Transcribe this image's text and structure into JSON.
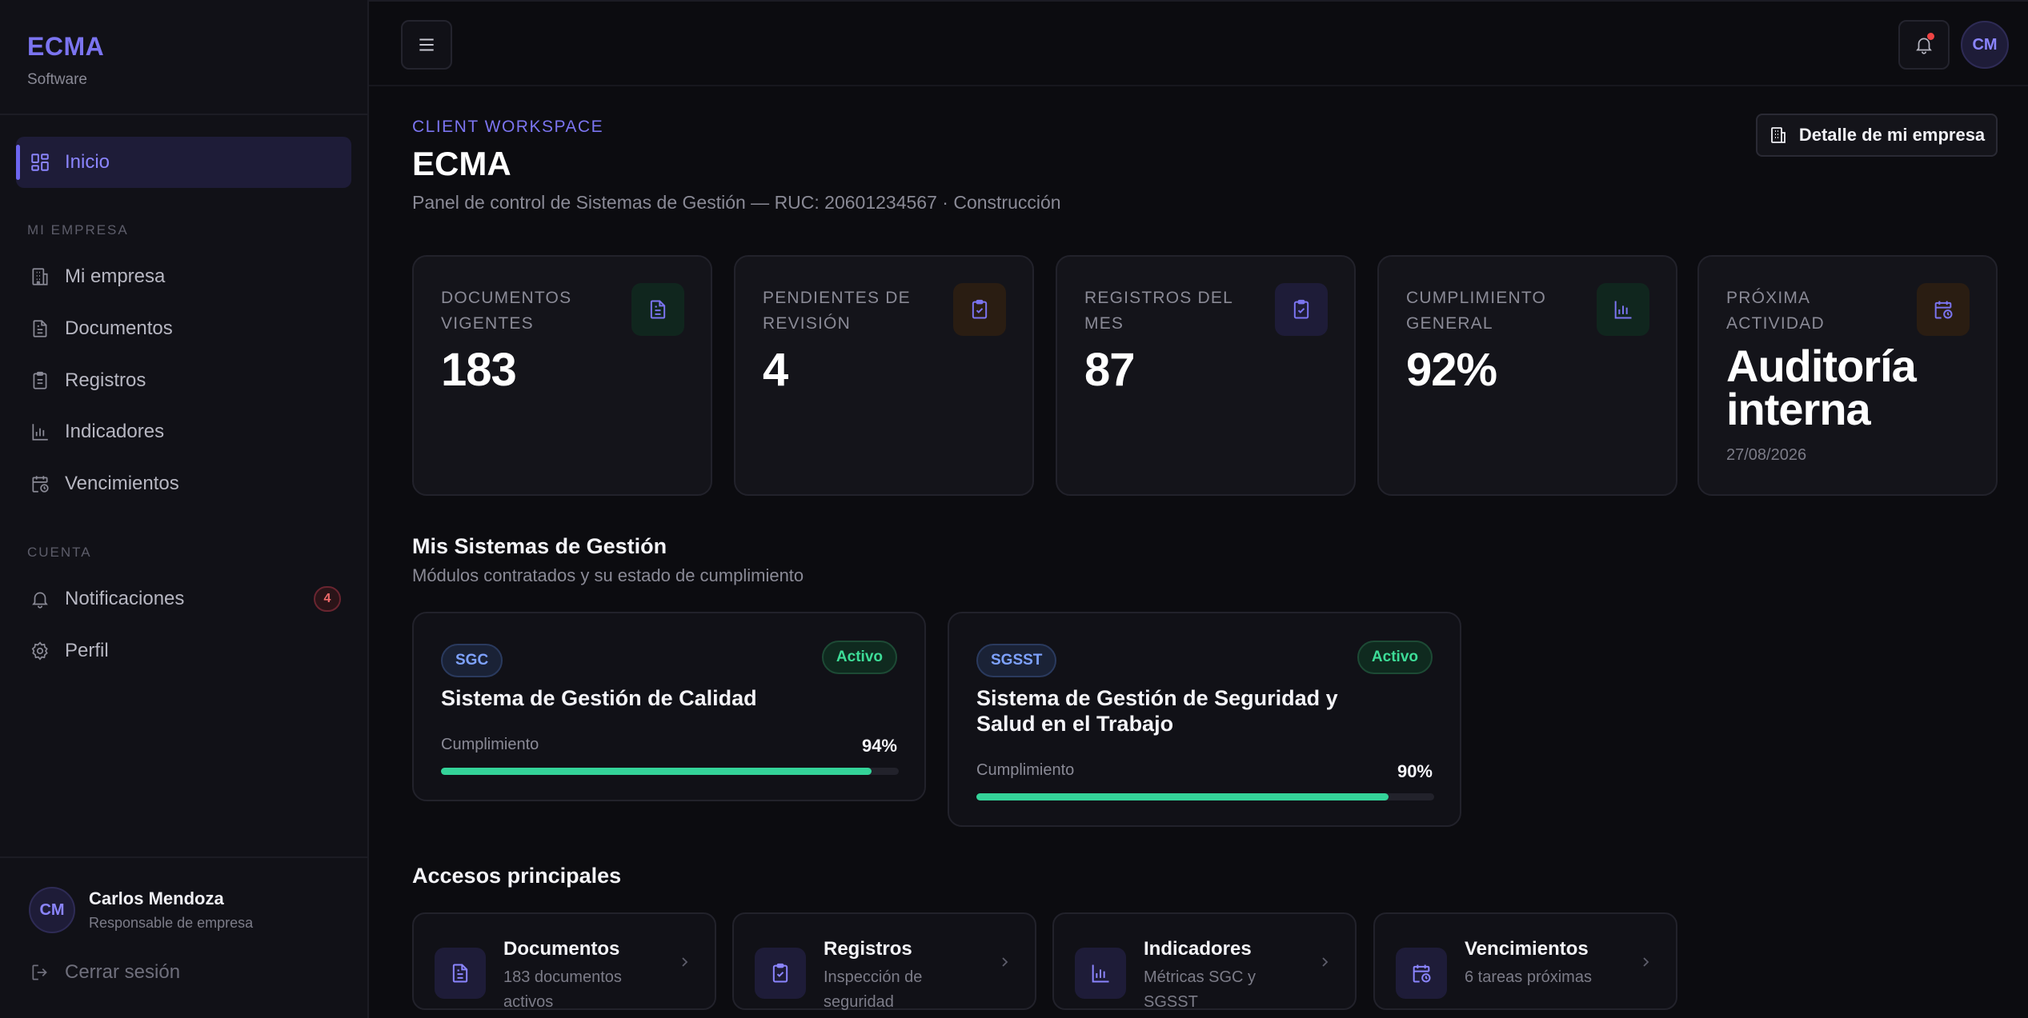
{
  "brand": {
    "name": "ECMA",
    "subtitle": "Software"
  },
  "sidebar": {
    "active_item": "Inicio",
    "section_company": "MI EMPRESA",
    "company_items": [
      {
        "label": "Mi empresa",
        "icon": "building-icon"
      },
      {
        "label": "Documentos",
        "icon": "document-icon"
      },
      {
        "label": "Registros",
        "icon": "clipboard-icon"
      },
      {
        "label": "Indicadores",
        "icon": "bar-chart-icon"
      },
      {
        "label": "Vencimientos",
        "icon": "calendar-clock-icon"
      }
    ],
    "section_account": "CUENTA",
    "account_items": [
      {
        "label": "Notificaciones",
        "icon": "bell-icon",
        "badge": "4"
      },
      {
        "label": "Perfil",
        "icon": "gear-icon"
      }
    ],
    "user": {
      "initials": "CM",
      "name": "Carlos Mendoza",
      "role": "Responsable de empresa"
    },
    "logout_label": "Cerrar sesión"
  },
  "topbar": {
    "avatar_initials": "CM",
    "has_unread": true
  },
  "header": {
    "eyebrow": "CLIENT WORKSPACE",
    "title": "ECMA",
    "subtitle": "Panel de control de Sistemas de Gestión — RUC: 20601234567 · Construcción",
    "detail_button": "Detalle de mi empresa"
  },
  "stats": [
    {
      "label": "Documentos vigentes",
      "value": "183",
      "icon": "document-icon",
      "color": "#34d399"
    },
    {
      "label": "Pendientes de revisión",
      "value": "4",
      "icon": "clipboard-check-icon",
      "color": "#f59e0b"
    },
    {
      "label": "Registros del mes",
      "value": "87",
      "icon": "clipboard-check-icon",
      "color": "#7b74f0"
    },
    {
      "label": "Cumplimiento general",
      "value": "92%",
      "icon": "bar-chart-icon",
      "color": "#34d399"
    },
    {
      "label": "Próxima actividad",
      "value": "Auditoría interna",
      "date": "27/08/2026",
      "icon": "calendar-clock-icon",
      "color": "#f59e0b"
    }
  ],
  "systems_section": {
    "title": "Mis Sistemas de Gestión",
    "subtitle": "Módulos contratados y su estado de cumplimiento"
  },
  "systems": [
    {
      "tag": "SGC",
      "status": "Activo",
      "name": "Sistema de Gestión de Calidad",
      "compliance_label": "Cumplimiento",
      "compliance_value": "94%",
      "compliance": 0.94
    },
    {
      "tag": "SGSST",
      "status": "Activo",
      "name": "Sistema de Gestión de Seguridad y Salud en el Trabajo",
      "compliance_label": "Cumplimiento",
      "compliance_value": "90%",
      "compliance": 0.9
    }
  ],
  "quick_access": {
    "title": "Accesos principales",
    "items": [
      {
        "title": "Documentos",
        "subtitle": "183 documentos activos",
        "icon": "document-icon"
      },
      {
        "title": "Registros",
        "subtitle": "Inspección de seguridad",
        "icon": "clipboard-check-icon"
      },
      {
        "title": "Indicadores",
        "subtitle": "Métricas SGC y SGSST",
        "icon": "bar-chart-icon"
      },
      {
        "title": "Vencimientos",
        "subtitle": "6 tareas próximas",
        "icon": "calendar-clock-icon"
      }
    ]
  }
}
